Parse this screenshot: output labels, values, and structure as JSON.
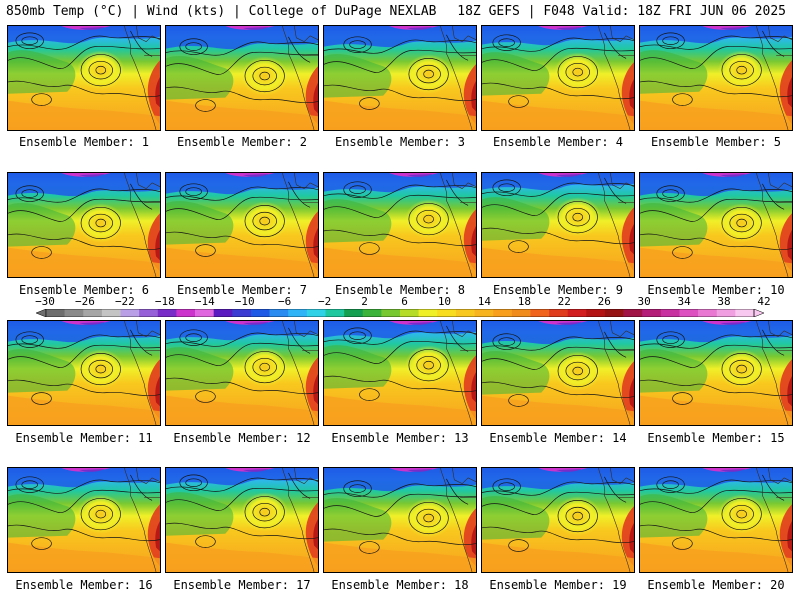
{
  "header": {
    "left": "850mb Temp (°C) | Wind (kts) | College of DuPage NEXLAB",
    "right": "18Z GEFS | F048 Valid: 18Z FRI JUN 06 2025"
  },
  "members": [
    "Ensemble Member: 1",
    "Ensemble Member: 2",
    "Ensemble Member: 3",
    "Ensemble Member: 4",
    "Ensemble Member: 5",
    "Ensemble Member: 6",
    "Ensemble Member: 7",
    "Ensemble Member: 8",
    "Ensemble Member: 9",
    "Ensemble Member: 10",
    "Ensemble Member: 11",
    "Ensemble Member: 12",
    "Ensemble Member: 13",
    "Ensemble Member: 14",
    "Ensemble Member: 15",
    "Ensemble Member: 16",
    "Ensemble Member: 17",
    "Ensemble Member: 18",
    "Ensemble Member: 19",
    "Ensemble Member: 20"
  ],
  "colorbar": {
    "labels": [
      "−30",
      "−26",
      "−22",
      "−18",
      "−14",
      "−10",
      "−6",
      "−2",
      "2",
      "6",
      "10",
      "14",
      "18",
      "22",
      "26",
      "30",
      "34",
      "38",
      "42"
    ],
    "colors": [
      "#6e6e6e",
      "#8a8a8a",
      "#a6a6a6",
      "#c4c4c4",
      "#b9a0e6",
      "#9660d8",
      "#7a2cc8",
      "#cc33cc",
      "#e066e0",
      "#5a1ac0",
      "#3c3cd2",
      "#1e5ae6",
      "#2a8cf0",
      "#30b4f8",
      "#30d2e8",
      "#20c8a0",
      "#14a050",
      "#3cb43c",
      "#78c832",
      "#b4dc28",
      "#f0f028",
      "#f8dc1e",
      "#f8c81e",
      "#f8b41e",
      "#f8a01e",
      "#f08c1e",
      "#f0641e",
      "#e03c1e",
      "#d21e1e",
      "#b41414",
      "#961414",
      "#a01446",
      "#b41e78",
      "#c832a0",
      "#dc50c0",
      "#e878d2",
      "#f0a0e0",
      "#f8c8f0"
    ]
  },
  "colors": {
    "background": "#ffffff",
    "contour": "#141414",
    "border": "#000000"
  }
}
